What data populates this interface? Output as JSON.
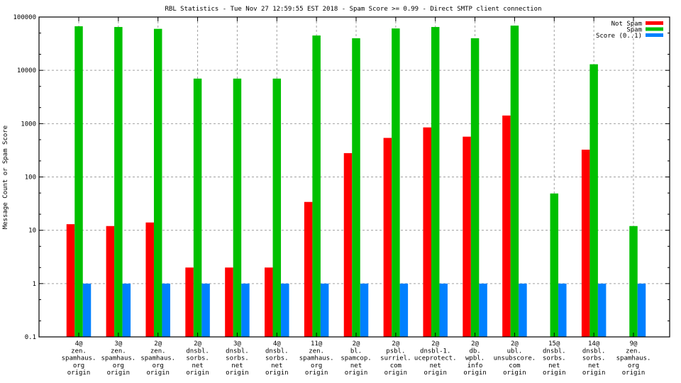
{
  "chart_data": {
    "type": "bar",
    "title": "RBL Statistics - Tue Nov 27 12:59:55 EST 2018 - Spam Score >= 0.99 - Direct SMTP client connection",
    "xlabel": "",
    "ylabel": "Message Count or Spam Score",
    "yscale": "log",
    "ylim": [
      0.1,
      100000
    ],
    "yticks": [
      "0.1",
      "1",
      "10",
      "100",
      "1000",
      "10000",
      "100000"
    ],
    "grid": true,
    "legend_position": "top-right",
    "categories": [
      [
        "4@",
        "zen.",
        "spamhaus.",
        "org",
        "origin"
      ],
      [
        "3@",
        "zen.",
        "spamhaus.",
        "org",
        "origin"
      ],
      [
        "2@",
        "zen.",
        "spamhaus.",
        "org",
        "origin"
      ],
      [
        "2@",
        "dnsbl.",
        "sorbs.",
        "net",
        "origin"
      ],
      [
        "3@",
        "dnsbl.",
        "sorbs.",
        "net",
        "origin"
      ],
      [
        "4@",
        "dnsbl.",
        "sorbs.",
        "net",
        "origin"
      ],
      [
        "11@",
        "zen.",
        "spamhaus.",
        "org",
        "origin"
      ],
      [
        "2@",
        "bl.",
        "spamcop.",
        "net",
        "origin"
      ],
      [
        "2@",
        "psbl.",
        "surriel.",
        "com",
        "origin"
      ],
      [
        "2@",
        "dnsbl-1.",
        "uceprotect.",
        "net",
        "origin"
      ],
      [
        "2@",
        "db.",
        "wpbl.",
        "info",
        "origin"
      ],
      [
        "2@",
        "ubl.",
        "unsubscore.",
        "com",
        "origin"
      ],
      [
        "15@",
        "dnsbl.",
        "sorbs.",
        "net",
        "origin"
      ],
      [
        "14@",
        "dnsbl.",
        "sorbs.",
        "net",
        "origin"
      ],
      [
        "9@",
        "zen.",
        "spamhaus.",
        "org",
        "origin"
      ]
    ],
    "series": [
      {
        "name": "Not Spam",
        "color": "#ff0000",
        "values": [
          13,
          12,
          14,
          2,
          2,
          2,
          34,
          280,
          540,
          850,
          570,
          1420,
          null,
          325,
          null
        ]
      },
      {
        "name": "Spam",
        "color": "#00c000",
        "values": [
          67000,
          65000,
          60000,
          7000,
          7000,
          7000,
          45000,
          40000,
          61000,
          65000,
          40000,
          69000,
          49,
          13000,
          12
        ]
      },
      {
        "name": "Score (0..1)",
        "color": "#0080ff",
        "values": [
          1,
          1,
          1,
          1,
          1,
          1,
          1,
          1,
          1,
          1,
          1,
          1,
          1,
          1,
          1
        ]
      }
    ]
  }
}
